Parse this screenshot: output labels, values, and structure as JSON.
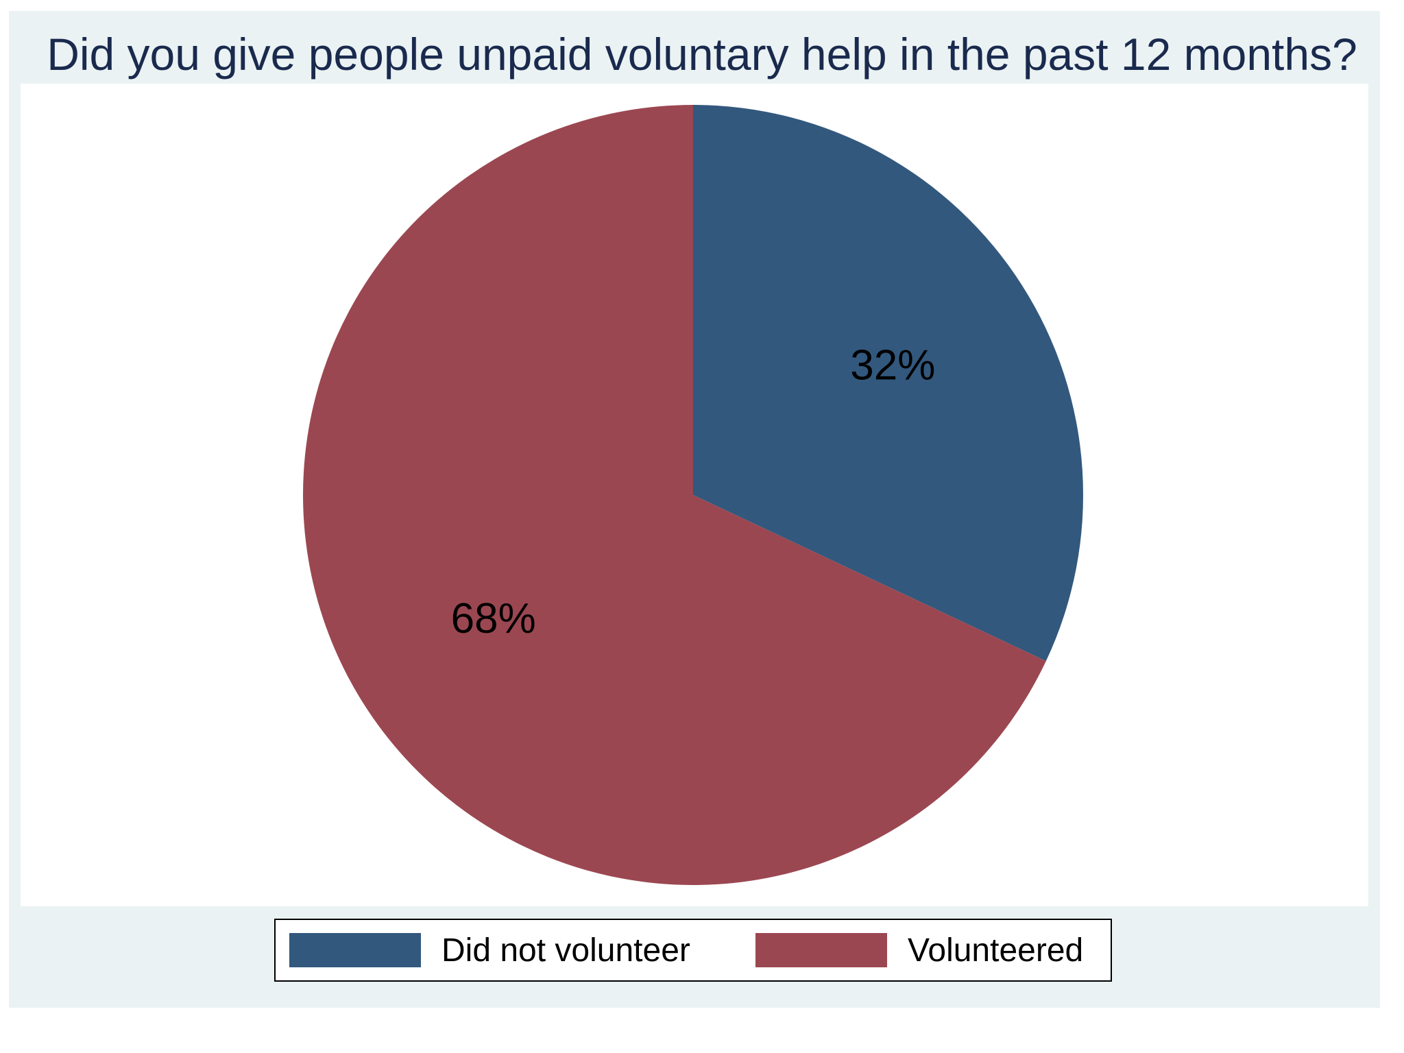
{
  "chart_data": {
    "type": "pie",
    "title": "Did you give people unpaid voluntary help  in the past 12 months?",
    "slices": [
      {
        "label": "Did not volunteer",
        "value": 32,
        "display": "32%",
        "color": "#32587d"
      },
      {
        "label": "Volunteered",
        "value": 68,
        "display": "68%",
        "color": "#9b4751"
      }
    ],
    "legend_position": "bottom",
    "start_angle": "12 o'clock",
    "direction": "clockwise"
  }
}
